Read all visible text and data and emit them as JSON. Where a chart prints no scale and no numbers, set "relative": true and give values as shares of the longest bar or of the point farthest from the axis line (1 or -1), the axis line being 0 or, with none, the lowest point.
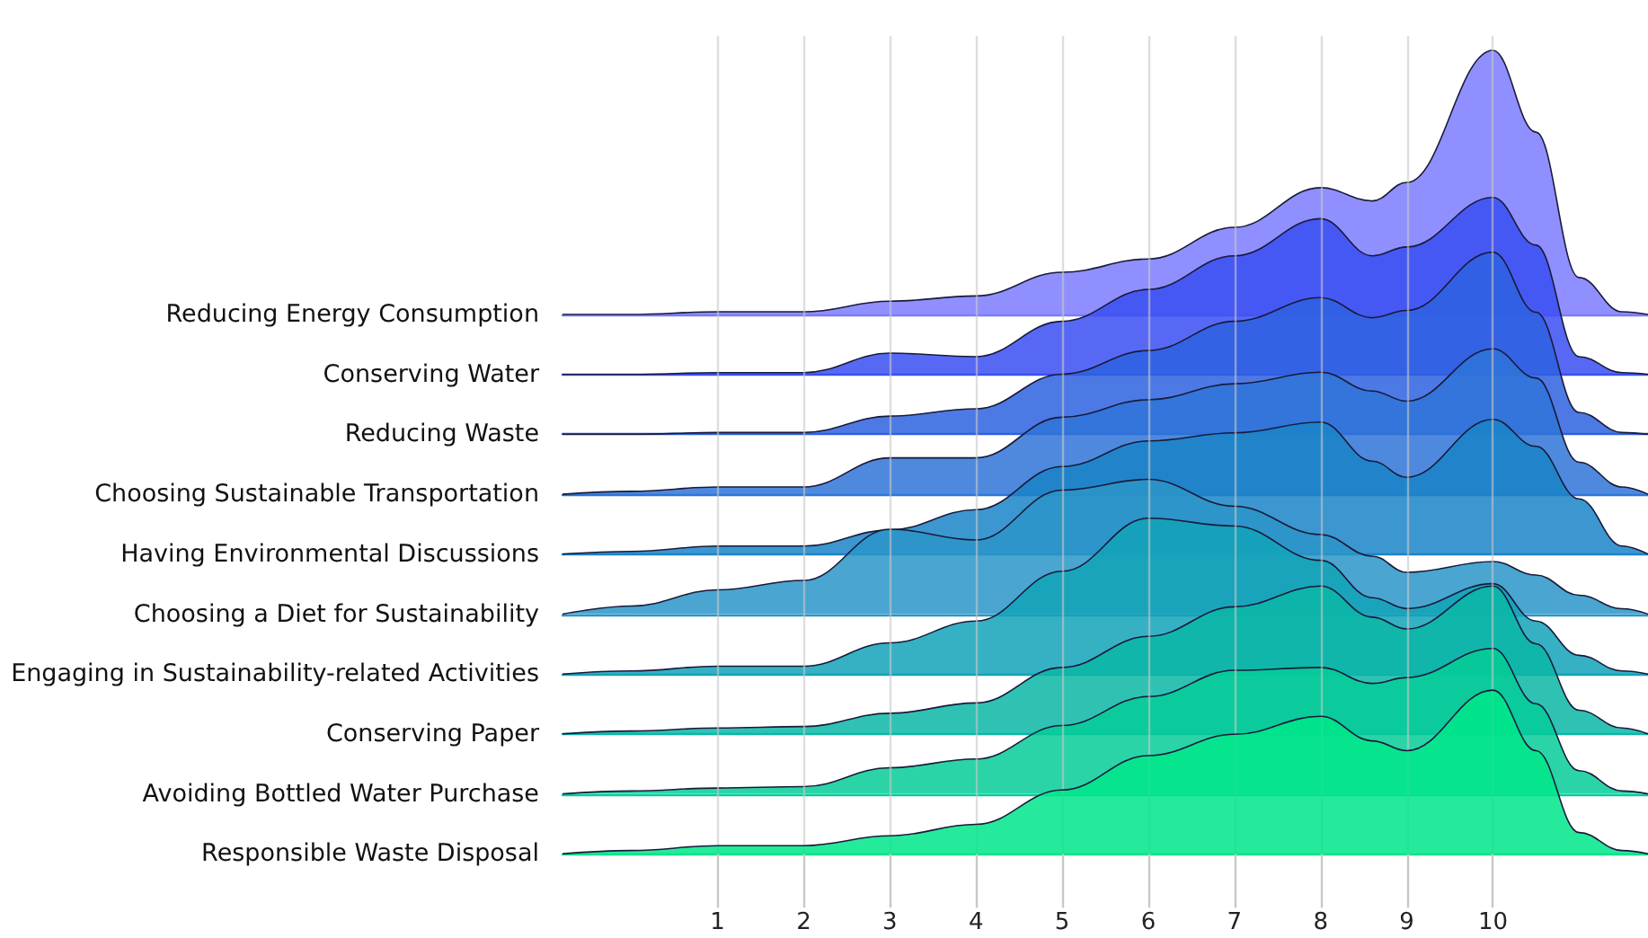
{
  "chart_data": [
    {
      "type": "area",
      "relative": true,
      "tick_labels": false,
      "xlim": [
        -0.8,
        11.8
      ],
      "x": [
        -0.8,
        0,
        1,
        2,
        3,
        4,
        5,
        6,
        7,
        8,
        8.6,
        9,
        10,
        10.5,
        11,
        11.5,
        11.8
      ],
      "series": [
        {
          "name": "Reducing Energy Consumption",
          "color": "#7b7bff",
          "values": [
            0,
            0,
            0.01,
            0.01,
            0.05,
            0.07,
            0.16,
            0.21,
            0.33,
            0.48,
            0.43,
            0.5,
            1,
            0.69,
            0.14,
            0.01,
            0
          ]
        }
      ]
    },
    {
      "type": "area",
      "relative": true,
      "tick_labels": false,
      "xlim": [
        -0.8,
        11.8
      ],
      "x": [
        -0.8,
        0,
        1,
        2,
        3,
        4,
        5,
        6,
        7,
        8,
        8.6,
        9,
        10,
        10.5,
        11,
        11.5,
        11.8
      ],
      "series": [
        {
          "name": "Conserving Water",
          "color": "#3a4ff2",
          "values": [
            0,
            0,
            0.01,
            0.01,
            0.12,
            0.1,
            0.3,
            0.48,
            0.67,
            0.88,
            0.67,
            0.72,
            1,
            0.73,
            0.1,
            0.01,
            0
          ]
        }
      ]
    },
    {
      "type": "area",
      "relative": true,
      "tick_labels": false,
      "xlim": [
        -0.8,
        11.8
      ],
      "x": [
        -0.8,
        0,
        1,
        2,
        3,
        4,
        5,
        6,
        7,
        8,
        8.6,
        9,
        10,
        10.5,
        11,
        11.5,
        11.8
      ],
      "series": [
        {
          "name": "Reducing Waste",
          "color": "#2e62e0",
          "values": [
            0,
            0,
            0.01,
            0.01,
            0.1,
            0.14,
            0.33,
            0.46,
            0.62,
            0.75,
            0.64,
            0.68,
            1,
            0.67,
            0.12,
            0.01,
            0
          ]
        }
      ]
    },
    {
      "type": "area",
      "relative": true,
      "tick_labels": false,
      "xlim": [
        -0.8,
        11.8
      ],
      "x": [
        -0.8,
        0,
        1,
        2,
        3,
        4,
        5,
        6,
        7,
        8,
        8.6,
        9,
        10,
        10.5,
        11,
        11.5,
        11.8
      ],
      "series": [
        {
          "name": "Choosing Sustainable Transportation",
          "color": "#2f74d8",
          "values": [
            0,
            0.02,
            0.05,
            0.05,
            0.25,
            0.25,
            0.53,
            0.65,
            0.76,
            0.84,
            0.71,
            0.64,
            1,
            0.8,
            0.22,
            0.05,
            0
          ]
        }
      ]
    },
    {
      "type": "area",
      "relative": true,
      "tick_labels": false,
      "xlim": [
        -0.8,
        11.8
      ],
      "x": [
        -0.8,
        0,
        1,
        2,
        3,
        4,
        5,
        6,
        7,
        8,
        8.6,
        9,
        10,
        10.5,
        11,
        11.5,
        11.8
      ],
      "series": [
        {
          "name": "Having Environmental Discussions",
          "color": "#1a84c8",
          "values": [
            0,
            0.02,
            0.06,
            0.06,
            0.18,
            0.33,
            0.65,
            0.84,
            0.9,
            0.98,
            0.69,
            0.57,
            1,
            0.8,
            0.41,
            0.06,
            0
          ]
        }
      ]
    },
    {
      "type": "area",
      "relative": true,
      "tick_labels": false,
      "xlim": [
        -0.8,
        11.8
      ],
      "x": [
        -0.8,
        0,
        1,
        2,
        3,
        4,
        5,
        6,
        7,
        8,
        8.6,
        9,
        10,
        10.5,
        11,
        11.5,
        11.8
      ],
      "series": [
        {
          "name": "Choosing a Diet for Sustainability",
          "color": "#2a95c8",
          "values": [
            0,
            0.06,
            0.18,
            0.25,
            0.63,
            0.55,
            0.92,
            1,
            0.8,
            0.59,
            0.43,
            0.31,
            0.39,
            0.29,
            0.14,
            0.04,
            0
          ]
        }
      ]
    },
    {
      "type": "area",
      "relative": true,
      "tick_labels": false,
      "xlim": [
        -0.8,
        11.8
      ],
      "x": [
        -0.8,
        0,
        1,
        2,
        3,
        4,
        5,
        6,
        7,
        8,
        8.6,
        9,
        10,
        10.5,
        11,
        11.5,
        11.8
      ],
      "series": [
        {
          "name": "Engaging in Sustainability-related Activities",
          "color": "#12a3b8",
          "values": [
            0,
            0.02,
            0.05,
            0.05,
            0.2,
            0.34,
            0.66,
            1,
            0.95,
            0.73,
            0.49,
            0.42,
            0.58,
            0.34,
            0.12,
            0.02,
            0
          ]
        }
      ]
    },
    {
      "type": "area",
      "relative": true,
      "tick_labels": false,
      "xlim": [
        -0.8,
        11.8
      ],
      "x": [
        -0.8,
        0,
        1,
        2,
        3,
        4,
        5,
        6,
        7,
        8,
        8.6,
        9,
        10,
        10.5,
        11,
        11.5,
        11.8
      ],
      "series": [
        {
          "name": "Conserving Paper",
          "color": "#0ab7a6",
          "values": [
            0,
            0.02,
            0.04,
            0.05,
            0.14,
            0.21,
            0.45,
            0.66,
            0.86,
            1,
            0.79,
            0.71,
            1,
            0.61,
            0.16,
            0.04,
            0
          ]
        }
      ]
    },
    {
      "type": "area",
      "relative": true,
      "tick_labels": false,
      "xlim": [
        -0.8,
        11.8
      ],
      "x": [
        -0.8,
        0,
        1,
        2,
        3,
        4,
        5,
        6,
        7,
        8,
        8.6,
        9,
        10,
        10.5,
        11,
        11.5,
        11.8
      ],
      "series": [
        {
          "name": "Avoiding Bottled Water Purchase",
          "color": "#05cc98",
          "values": [
            0,
            0.02,
            0.04,
            0.05,
            0.18,
            0.24,
            0.47,
            0.67,
            0.85,
            0.87,
            0.76,
            0.8,
            1,
            0.62,
            0.16,
            0.02,
            0
          ]
        }
      ]
    },
    {
      "type": "area",
      "relative": true,
      "tick_labels": "x",
      "grid": "x",
      "xlim": [
        -0.8,
        11.8
      ],
      "xticks": [
        1,
        2,
        3,
        4,
        5,
        6,
        7,
        8,
        9,
        10
      ],
      "x": [
        -0.8,
        0,
        1,
        2,
        3,
        4,
        5,
        6,
        7,
        8,
        8.6,
        9,
        10,
        10.5,
        11,
        11.5,
        11.8
      ],
      "series": [
        {
          "name": "Responsible Waste Disposal",
          "color": "#00e68a",
          "values": [
            0,
            0.02,
            0.05,
            0.05,
            0.11,
            0.18,
            0.39,
            0.6,
            0.73,
            0.84,
            0.69,
            0.63,
            1,
            0.63,
            0.13,
            0.02,
            0
          ]
        }
      ]
    }
  ]
}
